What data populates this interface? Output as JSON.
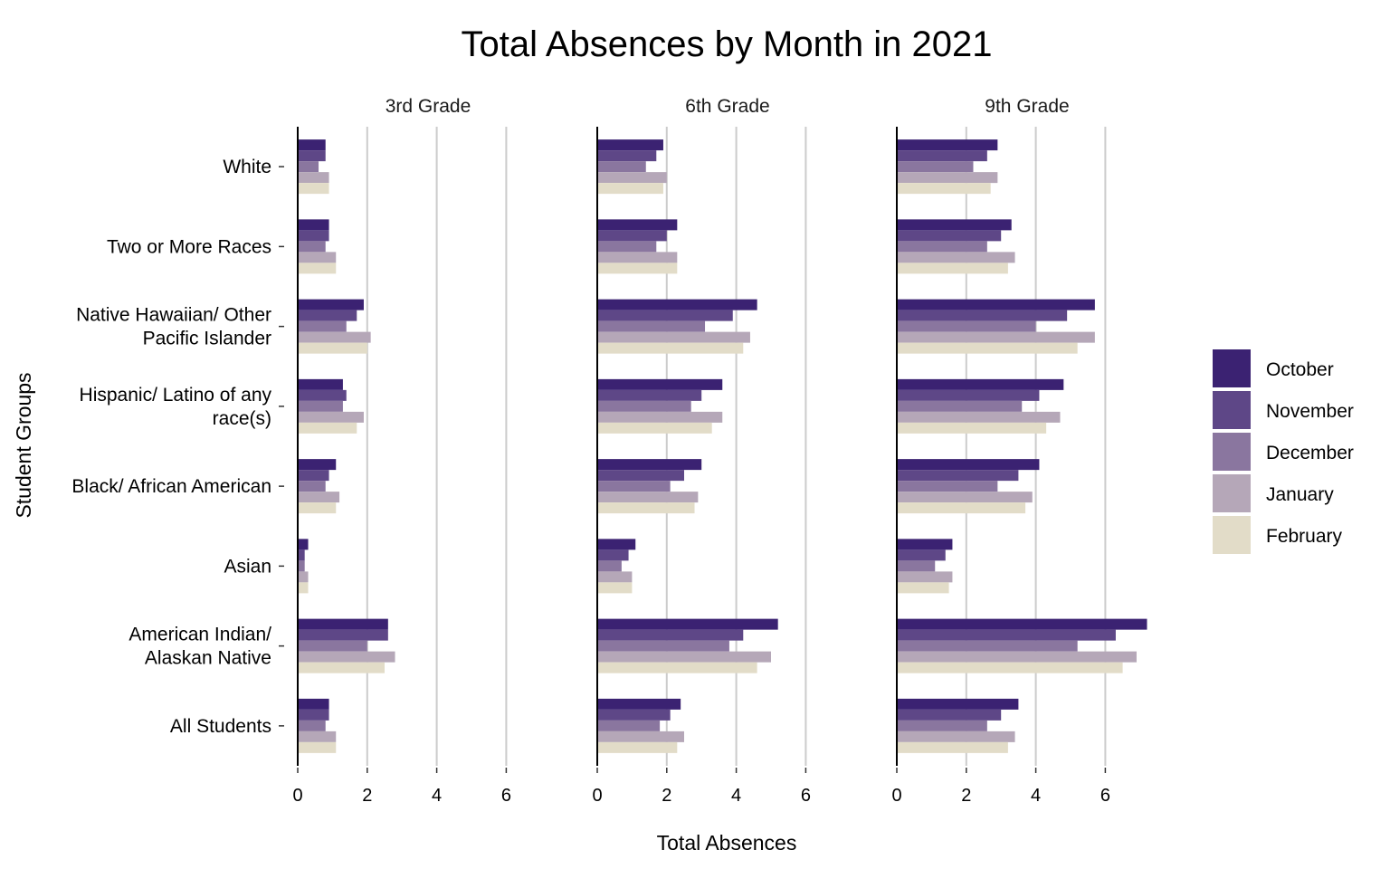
{
  "chart_data": {
    "type": "bar",
    "orientation": "horizontal",
    "title": "Total Absences by Month in 2021",
    "xlabel": "Total Absences",
    "ylabel": "Student Groups",
    "xlim": [
      0,
      7.4
    ],
    "x_ticks": [
      0,
      2,
      4,
      6
    ],
    "grid": "vertical major lines",
    "legend_position": "right",
    "categories": [
      "All Students",
      "American Indian/ Alaskan Native",
      "Asian",
      "Black/ African American",
      "Hispanic/ Latino of any race(s)",
      "Native Hawaiian/ Other Pacific Islander",
      "Two or More Races",
      "White"
    ],
    "category_lines": [
      [
        "All Students"
      ],
      [
        "American Indian/",
        "Alaskan Native"
      ],
      [
        "Asian"
      ],
      [
        "Black/ African American"
      ],
      [
        "Hispanic/ Latino of any",
        "race(s)"
      ],
      [
        "Native Hawaiian/ Other",
        "Pacific Islander"
      ],
      [
        "Two or More Races"
      ],
      [
        "White"
      ]
    ],
    "series_names": [
      "October",
      "November",
      "December",
      "January",
      "February"
    ],
    "series_colors": [
      "#3b2272",
      "#5e4787",
      "#8a769f",
      "#b5a7b8",
      "#e2dcc8"
    ],
    "facets": [
      {
        "name": "3rd Grade",
        "series": [
          {
            "name": "October",
            "values": [
              0.9,
              2.6,
              0.3,
              1.1,
              1.3,
              1.9,
              0.9,
              0.8
            ]
          },
          {
            "name": "November",
            "values": [
              0.9,
              2.6,
              0.2,
              0.9,
              1.4,
              1.7,
              0.9,
              0.8
            ]
          },
          {
            "name": "December",
            "values": [
              0.8,
              2.0,
              0.2,
              0.8,
              1.3,
              1.4,
              0.8,
              0.6
            ]
          },
          {
            "name": "January",
            "values": [
              1.1,
              2.8,
              0.3,
              1.2,
              1.9,
              2.1,
              1.1,
              0.9
            ]
          },
          {
            "name": "February",
            "values": [
              1.1,
              2.5,
              0.3,
              1.1,
              1.7,
              2.0,
              1.1,
              0.9
            ]
          }
        ]
      },
      {
        "name": "6th Grade",
        "series": [
          {
            "name": "October",
            "values": [
              2.4,
              5.2,
              1.1,
              3.0,
              3.6,
              4.6,
              2.3,
              1.9
            ]
          },
          {
            "name": "November",
            "values": [
              2.1,
              4.2,
              0.9,
              2.5,
              3.0,
              3.9,
              2.0,
              1.7
            ]
          },
          {
            "name": "December",
            "values": [
              1.8,
              3.8,
              0.7,
              2.1,
              2.7,
              3.1,
              1.7,
              1.4
            ]
          },
          {
            "name": "January",
            "values": [
              2.5,
              5.0,
              1.0,
              2.9,
              3.6,
              4.4,
              2.3,
              2.0
            ]
          },
          {
            "name": "February",
            "values": [
              2.3,
              4.6,
              1.0,
              2.8,
              3.3,
              4.2,
              2.3,
              1.9
            ]
          }
        ]
      },
      {
        "name": "9th Grade",
        "series": [
          {
            "name": "October",
            "values": [
              3.5,
              7.2,
              1.6,
              4.1,
              4.8,
              5.7,
              3.3,
              2.9
            ]
          },
          {
            "name": "November",
            "values": [
              3.0,
              6.3,
              1.4,
              3.5,
              4.1,
              4.9,
              3.0,
              2.6
            ]
          },
          {
            "name": "December",
            "values": [
              2.6,
              5.2,
              1.1,
              2.9,
              3.6,
              4.0,
              2.6,
              2.2
            ]
          },
          {
            "name": "January",
            "values": [
              3.4,
              6.9,
              1.6,
              3.9,
              4.7,
              5.7,
              3.4,
              2.9
            ]
          },
          {
            "name": "February",
            "values": [
              3.2,
              6.5,
              1.5,
              3.7,
              4.3,
              5.2,
              3.2,
              2.7
            ]
          }
        ]
      }
    ]
  }
}
